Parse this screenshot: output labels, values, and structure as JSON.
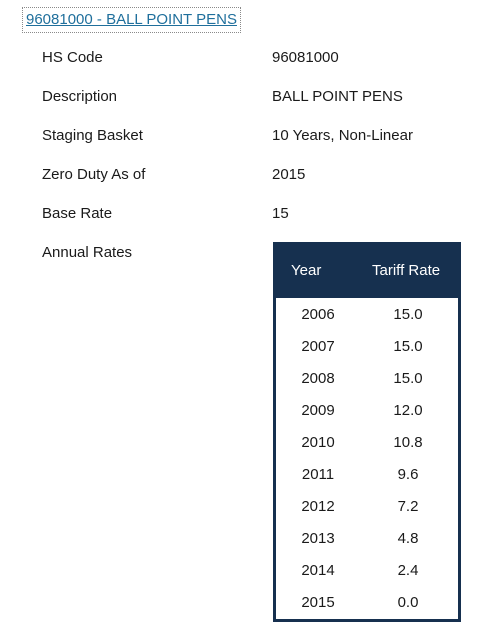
{
  "header": {
    "link_text": "96081000 - BALL POINT PENS"
  },
  "fields": [
    {
      "label": "HS Code",
      "value": "96081000"
    },
    {
      "label": "Description",
      "value": "BALL POINT PENS"
    },
    {
      "label": "Staging Basket",
      "value": "10 Years, Non-Linear"
    },
    {
      "label": "Zero Duty As of",
      "value": "2015"
    },
    {
      "label": "Base Rate",
      "value": "15"
    },
    {
      "label": "Annual Rates",
      "value": ""
    }
  ],
  "rates_table": {
    "columns": [
      "Year",
      "Tariff Rate"
    ],
    "rows": [
      {
        "year": "2006",
        "rate": "15.0"
      },
      {
        "year": "2007",
        "rate": "15.0"
      },
      {
        "year": "2008",
        "rate": "15.0"
      },
      {
        "year": "2009",
        "rate": "12.0"
      },
      {
        "year": "2010",
        "rate": "10.8"
      },
      {
        "year": "2011",
        "rate": "9.6"
      },
      {
        "year": "2012",
        "rate": "7.2"
      },
      {
        "year": "2013",
        "rate": "4.8"
      },
      {
        "year": "2014",
        "rate": "2.4"
      },
      {
        "year": "2015",
        "rate": "0.0"
      }
    ]
  },
  "colors": {
    "link": "#1f6f9c",
    "table_header_bg": "#16304f",
    "table_header_text": "#ffffff"
  }
}
